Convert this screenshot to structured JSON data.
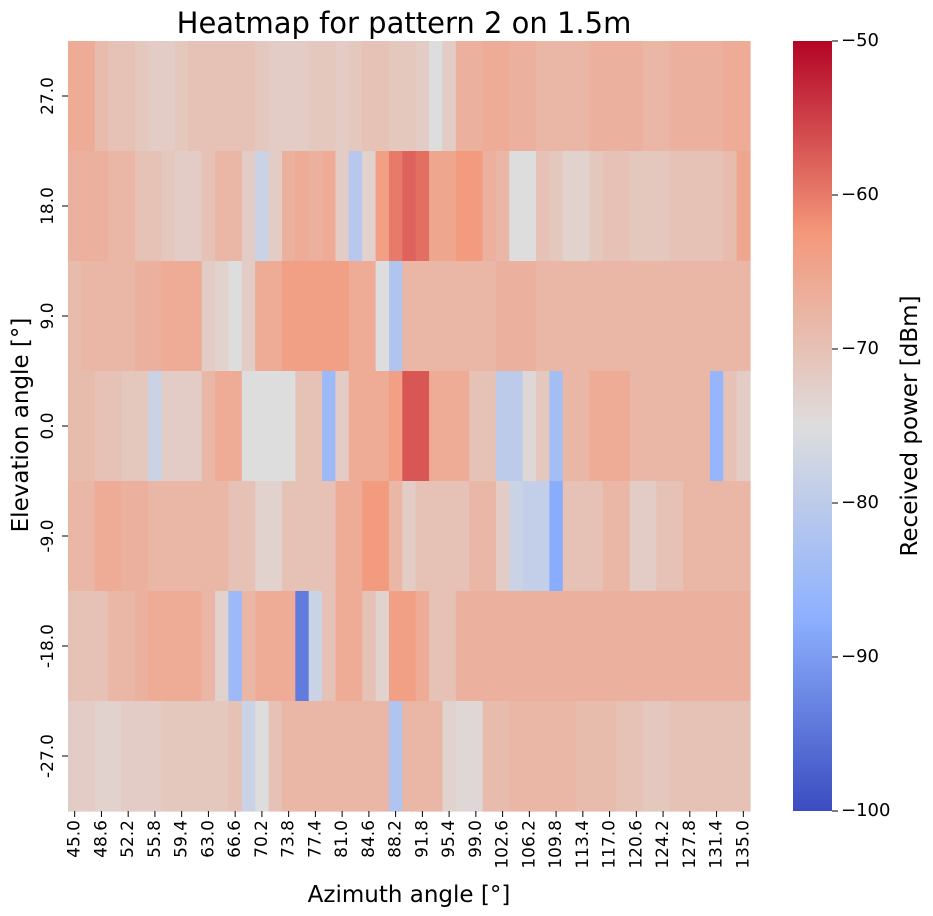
{
  "chart_data": {
    "type": "heatmap",
    "title": "Heatmap for pattern 2 on 1.5m",
    "xlabel": "Azimuth angle [°]",
    "ylabel": "Elevation angle [°]",
    "colorbar_label": "Received power [dBm]",
    "colormap": "coolwarm",
    "vmin": -100,
    "vmax": -50,
    "colorbar_ticks": [
      -50,
      -60,
      -70,
      -80,
      -90,
      -100
    ],
    "x": [
      45.0,
      46.8,
      48.6,
      50.4,
      52.2,
      54.0,
      55.8,
      57.6,
      59.4,
      61.2,
      63.0,
      64.8,
      66.6,
      68.4,
      70.2,
      72.0,
      73.8,
      75.6,
      77.4,
      79.2,
      81.0,
      82.8,
      84.6,
      86.4,
      88.2,
      90.0,
      91.8,
      93.6,
      95.4,
      97.2,
      99.0,
      100.8,
      102.6,
      104.4,
      106.2,
      108.0,
      109.8,
      111.6,
      113.4,
      115.2,
      117.0,
      118.8,
      120.6,
      122.4,
      124.2,
      126.0,
      127.8,
      129.6,
      131.4,
      133.2,
      135.0
    ],
    "x_tick_labels": [
      "45.0",
      "48.6",
      "52.2",
      "55.8",
      "59.4",
      "63.0",
      "66.6",
      "70.2",
      "73.8",
      "77.4",
      "81.0",
      "84.6",
      "88.2",
      "91.8",
      "95.4",
      "99.0",
      "102.6",
      "106.2",
      "109.8",
      "113.4",
      "117.0",
      "120.6",
      "124.2",
      "127.8",
      "131.4",
      "135.0"
    ],
    "y": [
      27.0,
      18.0,
      9.0,
      0.0,
      -9.0,
      -18.0,
      -27.0
    ],
    "y_tick_labels": [
      "27.0",
      "18.0",
      "9.0",
      "0.0",
      "-9.0",
      "-18.0",
      "-27.0"
    ],
    "values": [
      [
        -66,
        -66,
        -69,
        -70,
        -70,
        -71,
        -72,
        -72,
        -71,
        -70,
        -70,
        -70,
        -70,
        -70,
        -71,
        -72,
        -72,
        -72,
        -71,
        -71,
        -72,
        -71,
        -70,
        -70,
        -71,
        -71,
        -72,
        -75,
        -72,
        -67,
        -67,
        -66,
        -66,
        -67,
        -67,
        -68,
        -68,
        -68,
        -68,
        -67,
        -67,
        -67,
        -67,
        -68,
        -68,
        -67,
        -67,
        -67,
        -67,
        -66,
        -66
      ],
      [
        -67,
        -67,
        -67,
        -68,
        -68,
        -70,
        -70,
        -71,
        -72,
        -72,
        -70,
        -68,
        -68,
        -72,
        -78,
        -72,
        -67,
        -66,
        -67,
        -66,
        -72,
        -81,
        -73,
        -64,
        -60,
        -58,
        -59,
        -65,
        -65,
        -63,
        -63,
        -67,
        -68,
        -75,
        -75,
        -70,
        -71,
        -73,
        -73,
        -71,
        -70,
        -70,
        -71,
        -71,
        -71,
        -70,
        -70,
        -70,
        -70,
        -69,
        -65
      ],
      [
        -69,
        -68,
        -68,
        -68,
        -68,
        -67,
        -67,
        -66,
        -66,
        -66,
        -72,
        -73,
        -75,
        -72,
        -66,
        -66,
        -64,
        -64,
        -64,
        -64,
        -64,
        -66,
        -66,
        -75,
        -82,
        -68,
        -68,
        -68,
        -68,
        -68,
        -68,
        -68,
        -67,
        -67,
        -67,
        -68,
        -68,
        -68,
        -68,
        -68,
        -68,
        -68,
        -68,
        -68,
        -68,
        -68,
        -68,
        -68,
        -68,
        -68,
        -68
      ],
      [
        -69,
        -69,
        -70,
        -70,
        -71,
        -71,
        -78,
        -72,
        -72,
        -72,
        -68,
        -66,
        -66,
        -75,
        -75,
        -75,
        -75,
        -70,
        -70,
        -85,
        -72,
        -66,
        -66,
        -66,
        -64,
        -57,
        -57,
        -66,
        -66,
        -66,
        -70,
        -70,
        -80,
        -80,
        -74,
        -71,
        -84,
        -68,
        -68,
        -66,
        -66,
        -66,
        -68,
        -68,
        -68,
        -68,
        -68,
        -68,
        -86,
        -70,
        -72
      ],
      [
        -68,
        -68,
        -66,
        -66,
        -67,
        -67,
        -68,
        -68,
        -68,
        -68,
        -68,
        -68,
        -70,
        -70,
        -73,
        -73,
        -70,
        -70,
        -70,
        -70,
        -66,
        -66,
        -63,
        -63,
        -68,
        -72,
        -70,
        -70,
        -70,
        -70,
        -68,
        -68,
        -72,
        -78,
        -79,
        -79,
        -88,
        -70,
        -70,
        -70,
        -68,
        -68,
        -72,
        -72,
        -70,
        -70,
        -68,
        -68,
        -68,
        -68,
        -68
      ],
      [
        -70,
        -70,
        -70,
        -68,
        -68,
        -67,
        -66,
        -66,
        -66,
        -66,
        -68,
        -73,
        -85,
        -68,
        -66,
        -66,
        -66,
        -94,
        -78,
        -70,
        -66,
        -66,
        -70,
        -73,
        -64,
        -64,
        -66,
        -70,
        -70,
        -67,
        -67,
        -67,
        -67,
        -67,
        -67,
        -67,
        -67,
        -67,
        -67,
        -67,
        -67,
        -67,
        -67,
        -67,
        -67,
        -67,
        -67,
        -67,
        -67,
        -67,
        -67
      ],
      [
        -72,
        -72,
        -73,
        -73,
        -72,
        -72,
        -72,
        -71,
        -71,
        -71,
        -71,
        -71,
        -70,
        -78,
        -75,
        -70,
        -68,
        -68,
        -68,
        -68,
        -68,
        -68,
        -68,
        -68,
        -82,
        -68,
        -68,
        -68,
        -73,
        -74,
        -74,
        -69,
        -69,
        -68,
        -68,
        -68,
        -68,
        -68,
        -69,
        -69,
        -69,
        -70,
        -70,
        -71,
        -71,
        -70,
        -70,
        -70,
        -70,
        -70,
        -70
      ]
    ]
  }
}
